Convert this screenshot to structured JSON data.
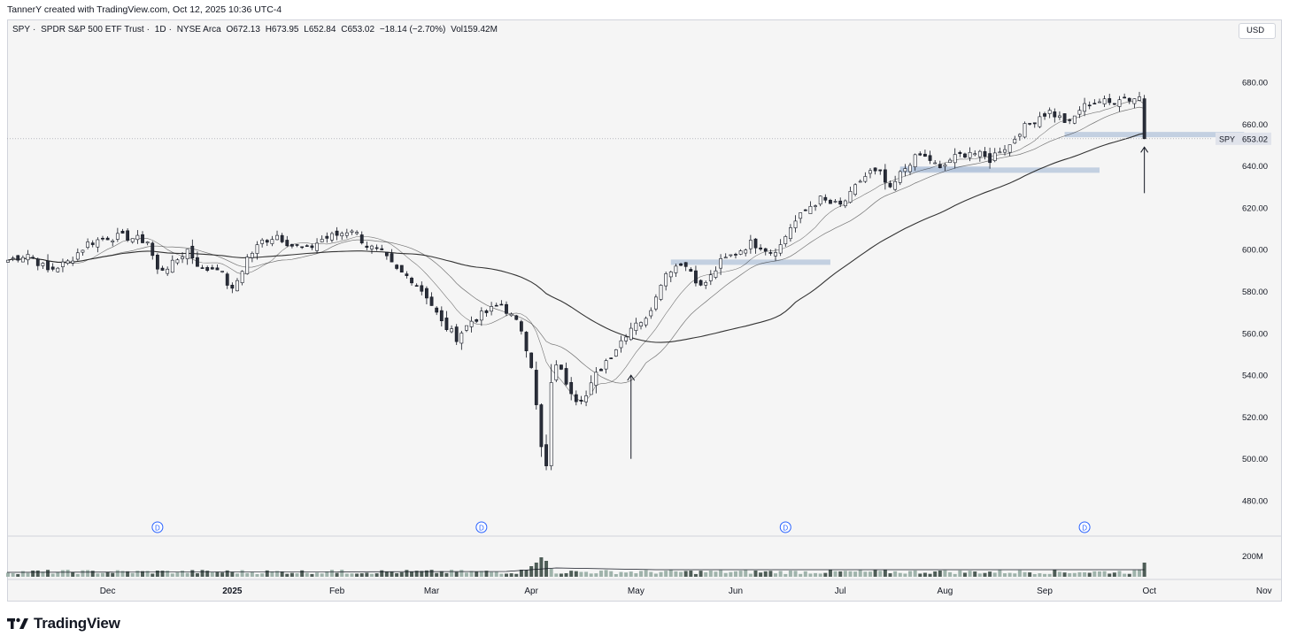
{
  "header": {
    "credit": "TannerY created with TradingView.com, Oct 12, 2025 10:36 UTC-4"
  },
  "legend": {
    "symbol": "SPY",
    "name": "SPDR S&P 500 ETF Trust",
    "interval": "1D",
    "exchange": "NYSE Arca",
    "open": "O672.13",
    "high": "H673.95",
    "low": "L652.84",
    "close": "C653.02",
    "change": "−18.14 (−2.70%)",
    "volume": "Vol159.42M",
    "separator": "·"
  },
  "currency": "USD",
  "price_label": {
    "symbol": "SPY",
    "value": "653.02"
  },
  "volume_axis_label": "200M",
  "dividend_marker": "D",
  "brand": "TradingView",
  "colors": {
    "up": "#ffffff",
    "down": "#2a2e39",
    "ma": "#1e1e1e",
    "zone": "#b2c3d9",
    "vol_up": "#9fb3ab",
    "vol_down": "#4e5d57",
    "divmarker": "#2962ff",
    "bg": "#f5f5f5"
  },
  "chart_data": {
    "type": "candlestick",
    "y_ticks": [
      680,
      660,
      640,
      620,
      600,
      580,
      560,
      540,
      520,
      500,
      480
    ],
    "x_ticks": [
      {
        "label": "Dec",
        "i": 20
      },
      {
        "label": "2025",
        "i": 45
      },
      {
        "label": "Feb",
        "i": 66
      },
      {
        "label": "Mar",
        "i": 85
      },
      {
        "label": "Apr",
        "i": 105
      },
      {
        "label": "May",
        "i": 126
      },
      {
        "label": "Jun",
        "i": 146
      },
      {
        "label": "Jul",
        "i": 167
      },
      {
        "label": "Aug",
        "i": 188
      },
      {
        "label": "Sep",
        "i": 208
      },
      {
        "label": "Oct",
        "i": 229
      },
      {
        "label": "Nov",
        "i": 252
      }
    ],
    "anchors": [
      [
        0,
        595
      ],
      [
        4,
        598
      ],
      [
        8,
        590
      ],
      [
        12,
        594
      ],
      [
        16,
        603
      ],
      [
        20,
        606
      ],
      [
        24,
        606
      ],
      [
        28,
        604
      ],
      [
        30,
        590
      ],
      [
        33,
        593
      ],
      [
        36,
        600
      ],
      [
        39,
        590
      ],
      [
        42,
        592
      ],
      [
        45,
        580
      ],
      [
        48,
        596
      ],
      [
        51,
        604
      ],
      [
        54,
        607
      ],
      [
        57,
        602
      ],
      [
        60,
        600
      ],
      [
        63,
        605
      ],
      [
        66,
        607
      ],
      [
        69,
        610
      ],
      [
        72,
        602
      ],
      [
        75,
        598
      ],
      [
        78,
        590
      ],
      [
        81,
        586
      ],
      [
        84,
        578
      ],
      [
        87,
        565
      ],
      [
        90,
        558
      ],
      [
        93,
        566
      ],
      [
        96,
        570
      ],
      [
        99,
        574
      ],
      [
        101,
        568
      ],
      [
        103,
        562
      ],
      [
        105,
        545
      ],
      [
        107,
        505
      ],
      [
        108,
        496
      ],
      [
        109,
        535
      ],
      [
        110,
        546
      ],
      [
        112,
        537
      ],
      [
        114,
        529
      ],
      [
        116,
        530
      ],
      [
        118,
        540
      ],
      [
        120,
        547
      ],
      [
        122,
        553
      ],
      [
        124,
        560
      ],
      [
        126,
        566
      ],
      [
        128,
        566
      ],
      [
        131,
        585
      ],
      [
        133,
        591
      ],
      [
        135,
        594
      ],
      [
        137,
        590
      ],
      [
        139,
        582
      ],
      [
        141,
        587
      ],
      [
        143,
        594
      ],
      [
        145,
        597
      ],
      [
        147,
        600
      ],
      [
        149,
        603
      ],
      [
        151,
        602
      ],
      [
        153,
        599
      ],
      [
        155,
        602
      ],
      [
        157,
        611
      ],
      [
        159,
        616
      ],
      [
        161,
        621
      ],
      [
        163,
        624
      ],
      [
        165,
        622
      ],
      [
        167,
        621
      ],
      [
        169,
        626
      ],
      [
        171,
        633
      ],
      [
        173,
        637
      ],
      [
        175,
        636
      ],
      [
        177,
        628
      ],
      [
        179,
        636
      ],
      [
        181,
        642
      ],
      [
        183,
        645
      ],
      [
        185,
        643
      ],
      [
        187,
        638
      ],
      [
        189,
        643
      ],
      [
        191,
        645
      ],
      [
        193,
        647
      ],
      [
        195,
        645
      ],
      [
        197,
        643
      ],
      [
        199,
        648
      ],
      [
        201,
        650
      ],
      [
        203,
        657
      ],
      [
        205,
        660
      ],
      [
        207,
        664
      ],
      [
        209,
        666
      ],
      [
        211,
        663
      ],
      [
        213,
        660
      ],
      [
        215,
        667
      ],
      [
        217,
        670
      ],
      [
        219,
        671
      ],
      [
        221,
        670
      ],
      [
        223,
        673
      ],
      [
        225,
        672
      ],
      [
        227,
        673
      ],
      [
        228,
        653
      ]
    ],
    "n_bars": 229,
    "last_candle": {
      "open": 672.13,
      "high": 673.95,
      "low": 652.84,
      "close": 653.02
    },
    "support_zones": [
      {
        "i0": 133,
        "i1": 165,
        "price": 594
      },
      {
        "i0": 179,
        "i1": 219,
        "price": 638
      },
      {
        "i0": 179,
        "i1": 197,
        "price": 638.5
      },
      {
        "i0": 212,
        "i1": 248,
        "price": 655
      }
    ],
    "arrows": [
      {
        "i": 125,
        "from": 500,
        "to": 540
      },
      {
        "i": 228,
        "from": 627,
        "to": 649
      }
    ],
    "dividends": [
      30,
      95,
      156,
      216
    ]
  }
}
